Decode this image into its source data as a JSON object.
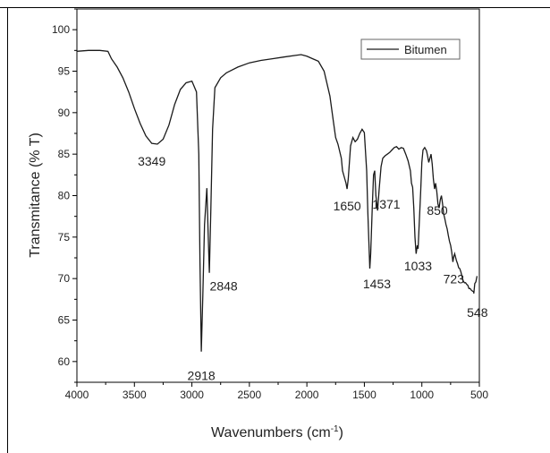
{
  "chart_data": {
    "type": "line",
    "xlabel": "Wavenumbers (cm",
    "xlabel_sup": "-1",
    "xlabel_end": ")",
    "ylabel": "Transmitance (% T)",
    "xlim": [
      4000,
      500
    ],
    "ylim": [
      57.5,
      102.5
    ],
    "xticks": [
      4000,
      3500,
      3000,
      2500,
      2000,
      1500,
      1000,
      500
    ],
    "yticks": [
      60,
      65,
      70,
      75,
      80,
      85,
      90,
      95,
      100
    ],
    "legend": "top-right",
    "line_color": "#1a1a1a",
    "series": [
      {
        "name": "Bitumen",
        "x": [
          4000,
          3900,
          3800,
          3730,
          3700,
          3650,
          3600,
          3550,
          3500,
          3450,
          3400,
          3349,
          3300,
          3250,
          3200,
          3150,
          3100,
          3050,
          3000,
          2960,
          2940,
          2930,
          2918,
          2905,
          2890,
          2870,
          2860,
          2848,
          2835,
          2820,
          2800,
          2750,
          2700,
          2600,
          2500,
          2400,
          2300,
          2200,
          2100,
          2050,
          2000,
          1950,
          1900,
          1850,
          1800,
          1770,
          1750,
          1730,
          1700,
          1690,
          1670,
          1660,
          1650,
          1640,
          1620,
          1600,
          1580,
          1560,
          1540,
          1520,
          1500,
          1480,
          1470,
          1460,
          1453,
          1445,
          1430,
          1420,
          1410,
          1400,
          1385,
          1371,
          1355,
          1340,
          1320,
          1300,
          1280,
          1260,
          1240,
          1220,
          1200,
          1180,
          1160,
          1140,
          1120,
          1100,
          1090,
          1080,
          1070,
          1060,
          1050,
          1040,
          1033,
          1025,
          1010,
          1000,
          990,
          975,
          960,
          950,
          940,
          930,
          920,
          910,
          900,
          890,
          880,
          870,
          860,
          850,
          840,
          830,
          820,
          810,
          800,
          790,
          780,
          770,
          760,
          750,
          740,
          730,
          723,
          715,
          700,
          690,
          680,
          670,
          660,
          650,
          640,
          630,
          620,
          610,
          600,
          590,
          580,
          570,
          560,
          550,
          548,
          540,
          530,
          520
        ],
        "y": [
          97.4,
          97.5,
          97.5,
          97.4,
          96.5,
          95.5,
          94.2,
          92.5,
          90.5,
          88.7,
          87.2,
          86.3,
          86.2,
          86.8,
          88.5,
          91.0,
          92.8,
          93.6,
          93.8,
          92.5,
          85.0,
          72.0,
          61.2,
          68.0,
          76.5,
          80.9,
          76.0,
          70.7,
          78.5,
          88.0,
          93.0,
          94.2,
          94.8,
          95.5,
          96.0,
          96.3,
          96.5,
          96.7,
          96.9,
          97.0,
          96.8,
          96.5,
          96.2,
          95.0,
          92.0,
          89.0,
          87.0,
          86.2,
          84.5,
          83.0,
          82.0,
          81.5,
          80.8,
          82.0,
          86.0,
          87.0,
          86.5,
          86.8,
          87.5,
          88.0,
          87.6,
          83.0,
          78.0,
          74.0,
          71.2,
          73.0,
          79.0,
          82.5,
          83.0,
          80.0,
          78.2,
          80.8,
          83.5,
          84.5,
          84.8,
          85.0,
          85.2,
          85.5,
          85.8,
          85.9,
          85.6,
          85.8,
          85.7,
          85.0,
          84.2,
          83.0,
          81.5,
          81.0,
          78.5,
          75.0,
          73.0,
          74.0,
          73.6,
          76.0,
          80.5,
          84.0,
          85.5,
          85.8,
          85.4,
          84.8,
          84.0,
          84.5,
          85.0,
          83.8,
          82.0,
          80.8,
          81.5,
          80.5,
          79.0,
          78.5,
          79.5,
          80.0,
          79.0,
          77.8,
          77.2,
          76.5,
          76.0,
          75.2,
          74.5,
          74.0,
          73.2,
          72.0,
          72.6,
          73.0,
          72.2,
          71.8,
          71.3,
          71.2,
          70.8,
          70.2,
          69.7,
          69.5,
          69.5,
          69.3,
          69.2,
          68.8,
          68.8,
          68.6,
          68.5,
          68.4,
          68.2,
          69.4,
          69.6,
          70.3
        ]
      }
    ],
    "annotations": [
      {
        "text": "3349",
        "x": 3349,
        "y": 86.2
      },
      {
        "text": "2918",
        "x": 2918,
        "y": 61.2
      },
      {
        "text": "2848",
        "x": 2848,
        "y": 70.7
      },
      {
        "text": "1650",
        "x": 1650,
        "y": 80.8
      },
      {
        "text": "1453",
        "x": 1453,
        "y": 71.2
      },
      {
        "text": "1371",
        "x": 1371,
        "y": 80.8
      },
      {
        "text": "1033",
        "x": 1033,
        "y": 73.6
      },
      {
        "text": "850",
        "x": 850,
        "y": 79.5
      },
      {
        "text": "723",
        "x": 723,
        "y": 72.0
      },
      {
        "text": "548",
        "x": 548,
        "y": 68.2
      }
    ]
  }
}
